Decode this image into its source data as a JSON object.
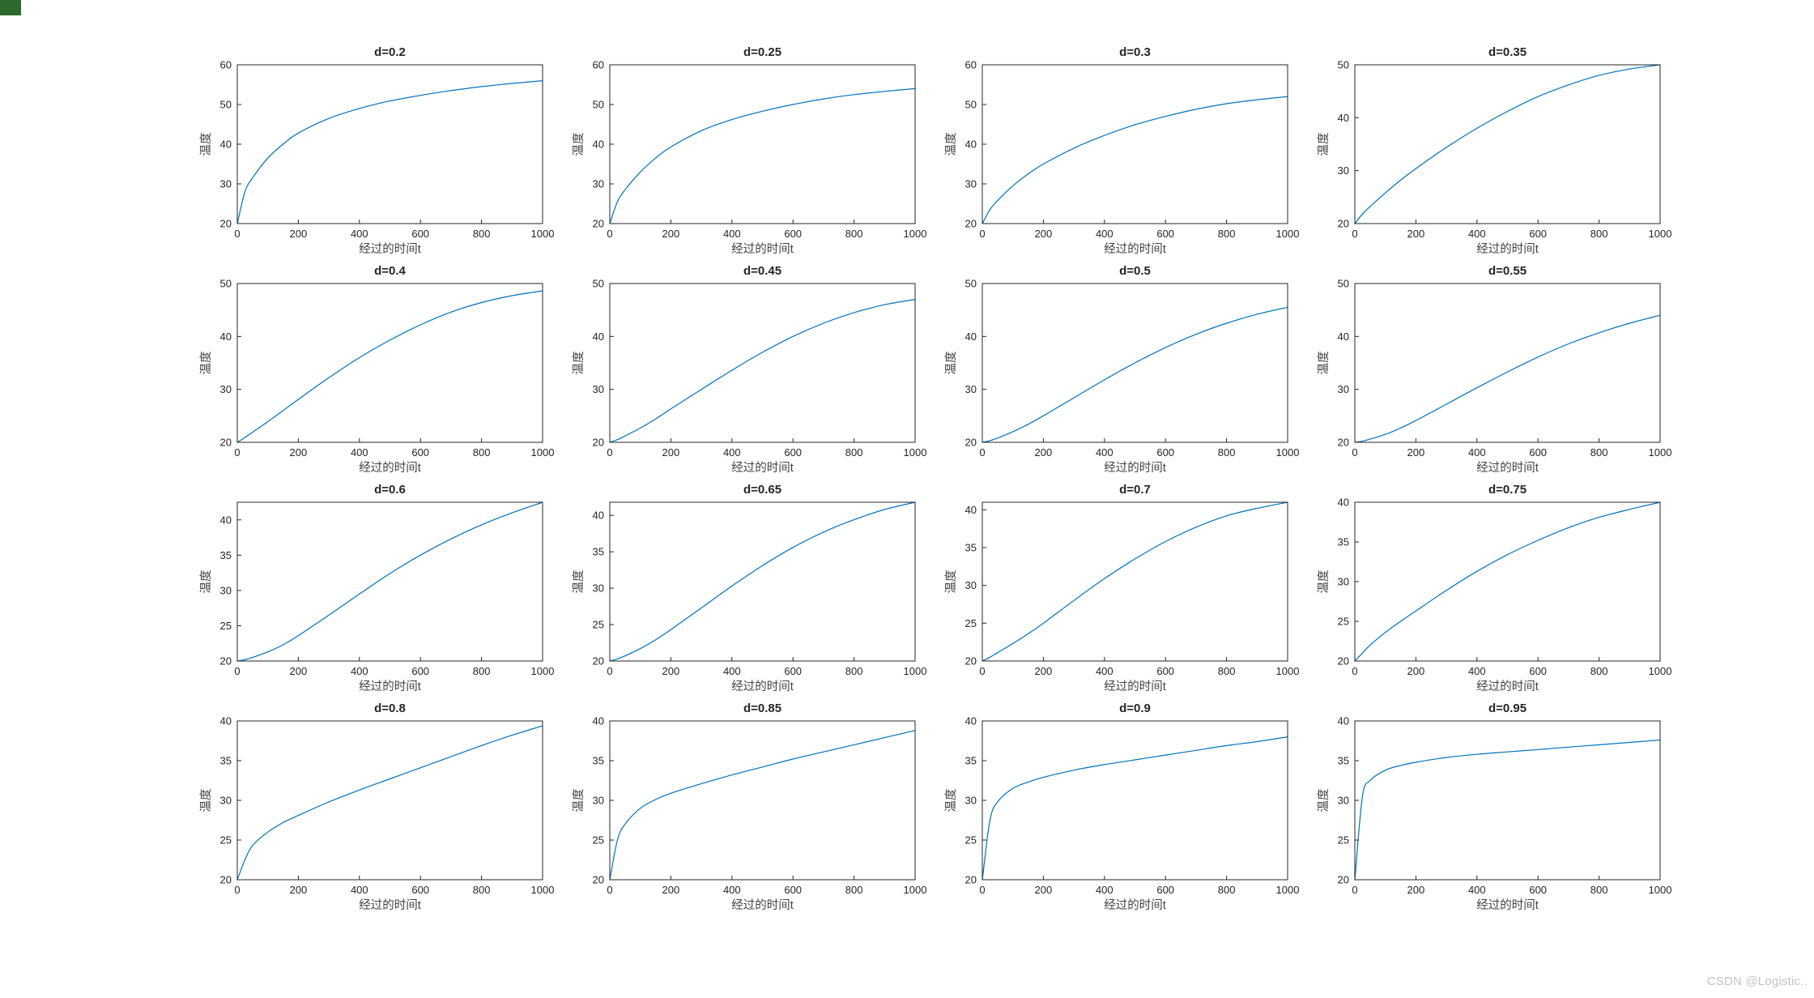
{
  "page": {
    "background": "#ffffff",
    "corner_artifact_color": "#2d6a2d"
  },
  "watermark": {
    "text": "CSDN @Logistic..",
    "color": "#c4c4c4"
  },
  "chart_data": {
    "type": "line",
    "grid": false,
    "legend": "none",
    "line_color": "#0072BD",
    "axis_color": "#262626",
    "tick_label_color": "#262626",
    "axis_label_color": "#424242",
    "xlabel": "经过的时间t",
    "ylabel": "温度",
    "xlim": [
      0,
      1000
    ],
    "xticks": [
      0,
      200,
      400,
      600,
      800,
      1000
    ],
    "x": [
      0,
      25,
      50,
      100,
      150,
      200,
      300,
      400,
      500,
      600,
      700,
      800,
      900,
      1000
    ],
    "subplots": [
      {
        "title": "d=0.2",
        "ylim": [
          20,
          60
        ],
        "yticks": [
          20,
          30,
          40,
          50,
          60
        ],
        "y": [
          20,
          28,
          31.5,
          36.5,
          40,
          42.8,
          46.5,
          49,
          50.9,
          52.3,
          53.5,
          54.5,
          55.3,
          56
        ]
      },
      {
        "title": "d=0.25",
        "ylim": [
          20,
          60
        ],
        "yticks": [
          20,
          30,
          40,
          50,
          60
        ],
        "y": [
          20,
          25.5,
          28.5,
          33,
          36.5,
          39.3,
          43.4,
          46.2,
          48.3,
          50,
          51.4,
          52.5,
          53.3,
          54
        ]
      },
      {
        "title": "d=0.3",
        "ylim": [
          20,
          60
        ],
        "yticks": [
          20,
          30,
          40,
          50,
          60
        ],
        "y": [
          20,
          23.5,
          25.8,
          29.5,
          32.5,
          35,
          39,
          42.2,
          44.9,
          47,
          48.8,
          50.2,
          51.2,
          52
        ]
      },
      {
        "title": "d=0.35",
        "ylim": [
          20,
          50
        ],
        "yticks": [
          20,
          30,
          40,
          50
        ],
        "y": [
          20,
          21.8,
          23.2,
          25.8,
          28.2,
          30.4,
          34.4,
          38,
          41.2,
          44,
          46.2,
          48,
          49.2,
          50
        ]
      },
      {
        "title": "d=0.4",
        "ylim": [
          20,
          50
        ],
        "yticks": [
          20,
          30,
          40,
          50
        ],
        "y": [
          20,
          20.9,
          21.9,
          23.9,
          26,
          28.1,
          32.2,
          36,
          39.3,
          42.2,
          44.6,
          46.4,
          47.7,
          48.6
        ]
      },
      {
        "title": "d=0.45",
        "ylim": [
          20,
          50
        ],
        "yticks": [
          20,
          30,
          40,
          50
        ],
        "y": [
          20,
          20.5,
          21.2,
          22.7,
          24.4,
          26.3,
          30,
          33.6,
          37,
          40,
          42.5,
          44.5,
          46,
          47
        ]
      },
      {
        "title": "d=0.5",
        "ylim": [
          20,
          50
        ],
        "yticks": [
          20,
          30,
          40,
          50
        ],
        "y": [
          20,
          20.3,
          20.8,
          22,
          23.4,
          25,
          28.4,
          31.8,
          35,
          37.9,
          40.4,
          42.5,
          44.2,
          45.5
        ]
      },
      {
        "title": "d=0.55",
        "ylim": [
          20,
          50
        ],
        "yticks": [
          20,
          30,
          40,
          50
        ],
        "y": [
          20,
          20.2,
          20.6,
          21.5,
          22.7,
          24.1,
          27.2,
          30.3,
          33.3,
          36.1,
          38.6,
          40.7,
          42.5,
          44
        ]
      },
      {
        "title": "d=0.6",
        "ylim": [
          20,
          42.5
        ],
        "yticks": [
          20,
          25,
          30,
          35,
          40
        ],
        "y": [
          20,
          20.2,
          20.5,
          21.3,
          22.3,
          23.6,
          26.5,
          29.5,
          32.4,
          35,
          37.3,
          39.3,
          41,
          42.5
        ]
      },
      {
        "title": "d=0.65",
        "ylim": [
          20,
          41.8
        ],
        "yticks": [
          20,
          25,
          30,
          35,
          40
        ],
        "y": [
          20,
          20.3,
          20.7,
          21.7,
          22.9,
          24.3,
          27.3,
          30.3,
          33.1,
          35.6,
          37.7,
          39.4,
          40.8,
          41.8
        ]
      },
      {
        "title": "d=0.7",
        "ylim": [
          20,
          41
        ],
        "yticks": [
          20,
          25,
          30,
          35,
          40
        ],
        "y": [
          20,
          20.5,
          21.1,
          22.3,
          23.6,
          25,
          28,
          30.9,
          33.5,
          35.8,
          37.7,
          39.2,
          40.2,
          41
        ]
      },
      {
        "title": "d=0.75",
        "ylim": [
          20,
          40
        ],
        "yticks": [
          20,
          25,
          30,
          35,
          40
        ],
        "y": [
          20,
          21,
          22,
          23.6,
          25,
          26.3,
          28.9,
          31.3,
          33.4,
          35.2,
          36.8,
          38.1,
          39.1,
          40
        ]
      },
      {
        "title": "d=0.8",
        "ylim": [
          20,
          40
        ],
        "yticks": [
          20,
          25,
          30,
          35,
          40
        ],
        "y": [
          20,
          22.5,
          24.3,
          26,
          27.2,
          28.1,
          29.8,
          31.3,
          32.7,
          34.1,
          35.5,
          36.9,
          38.2,
          39.4
        ]
      },
      {
        "title": "d=0.85",
        "ylim": [
          20,
          40
        ],
        "yticks": [
          20,
          25,
          30,
          35,
          40
        ],
        "y": [
          20,
          25,
          27,
          29,
          30.1,
          30.9,
          32.1,
          33.2,
          34.2,
          35.2,
          36.1,
          37,
          37.9,
          38.8
        ]
      },
      {
        "title": "d=0.9",
        "ylim": [
          20,
          40
        ],
        "yticks": [
          20,
          25,
          30,
          35,
          40
        ],
        "y": [
          20,
          27.5,
          29.8,
          31.5,
          32.3,
          32.9,
          33.8,
          34.5,
          35.1,
          35.7,
          36.3,
          36.9,
          37.4,
          38
        ]
      },
      {
        "title": "d=0.95",
        "ylim": [
          20,
          40
        ],
        "yticks": [
          20,
          25,
          30,
          35,
          40
        ],
        "y": [
          20,
          30.5,
          32.5,
          33.8,
          34.4,
          34.8,
          35.4,
          35.8,
          36.1,
          36.4,
          36.7,
          37,
          37.3,
          37.6
        ]
      }
    ]
  }
}
